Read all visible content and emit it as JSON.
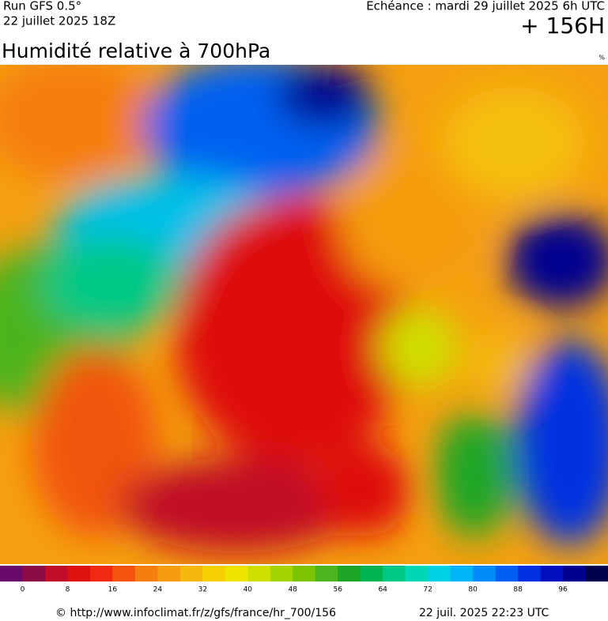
{
  "header": {
    "run": "Run GFS 0.5°",
    "run_date": "22 juillet 2025 18Z",
    "forecast": "Echéance : mardi 29 juillet 2025 6h UTC",
    "lead": "+ 156H",
    "title": "Humidité relative à 700hPa",
    "unit": "%"
  },
  "legend": {
    "labels": [
      0,
      8,
      16,
      24,
      32,
      40,
      48,
      56,
      64,
      72,
      80,
      88,
      96
    ],
    "colors": [
      "#6a0a6a",
      "#8c0a46",
      "#c00c28",
      "#de1010",
      "#f02a10",
      "#f25410",
      "#f57e10",
      "#f59c10",
      "#f5b810",
      "#f5d000",
      "#eee400",
      "#cfe000",
      "#a6d400",
      "#7cc400",
      "#4cb41c",
      "#1ea628",
      "#00b454",
      "#00c886",
      "#00d8b4",
      "#00d0e4",
      "#00b4f8",
      "#008cf8",
      "#005ef0",
      "#0030e0",
      "#0010c0",
      "#000090",
      "#00004c"
    ]
  },
  "footer": {
    "url": "© http://www.infoclimat.fr/z/gfs/france/hr_700/156",
    "generated": "22 juil. 2025 22:23 UTC"
  }
}
